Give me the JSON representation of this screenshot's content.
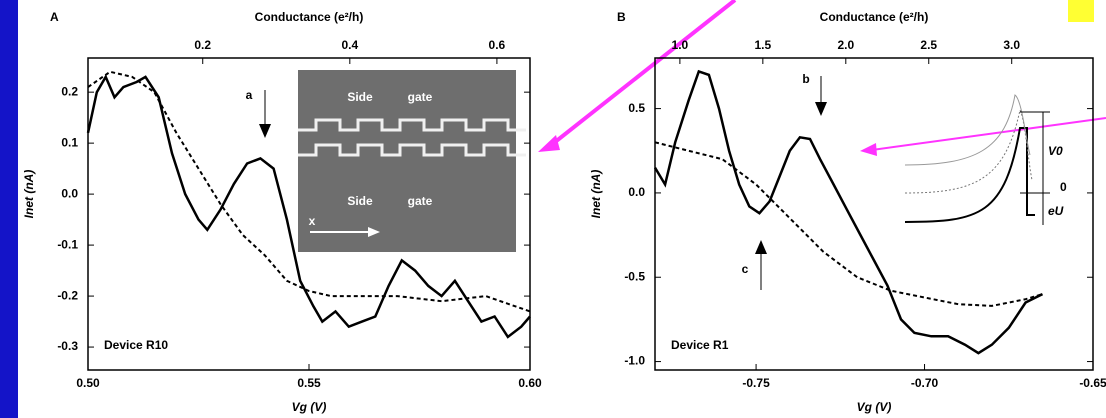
{
  "chart_data": [
    {
      "type": "line",
      "panel_label": "A",
      "top_axis_label": "Conductance (e²/h)",
      "x_label": "Vg (V)",
      "y_label": "Inet (nA)",
      "device_label": "Device R10",
      "annotations": [
        "a"
      ],
      "inset_labels": [
        "Side",
        "gate",
        "Side",
        "gate",
        "x"
      ],
      "xlim": [
        0.5,
        0.6
      ],
      "xticks": [
        {
          "value": 0.5,
          "label": "0.50"
        },
        {
          "value": 0.55,
          "label": "0.55"
        },
        {
          "value": 0.6,
          "label": "0.60"
        }
      ],
      "x2lim": [
        0.044,
        0.645
      ],
      "x2ticks": [
        0.2,
        0.4,
        0.6
      ],
      "ylim": [
        -0.345,
        0.267
      ],
      "yticks": [
        0.2,
        0.1,
        {
          "value": 0,
          "label": "0.0"
        },
        -0.1,
        -0.2,
        -0.3
      ],
      "series": [
        {
          "color": "#000000",
          "dashed": false,
          "x": [
            0.5,
            0.502,
            0.504,
            0.506,
            0.508,
            0.511,
            0.513,
            0.516,
            0.519,
            0.522,
            0.525,
            0.527,
            0.53,
            0.533,
            0.536,
            0.539,
            0.542,
            0.545,
            0.548,
            0.551,
            0.553,
            0.556,
            0.559,
            0.562,
            0.565,
            0.568,
            0.571,
            0.574,
            0.577,
            0.58,
            0.583,
            0.586,
            0.589,
            0.592,
            0.595,
            0.598,
            0.6
          ],
          "values": [
            0.12,
            0.2,
            0.23,
            0.19,
            0.21,
            0.22,
            0.23,
            0.19,
            0.08,
            0.0,
            -0.05,
            -0.07,
            -0.03,
            0.02,
            0.06,
            0.07,
            0.05,
            -0.05,
            -0.17,
            -0.22,
            -0.25,
            -0.23,
            -0.26,
            -0.25,
            -0.24,
            -0.18,
            -0.13,
            -0.15,
            -0.18,
            -0.2,
            -0.17,
            -0.21,
            -0.25,
            -0.24,
            -0.28,
            -0.26,
            -0.24
          ]
        },
        {
          "color": "#000000",
          "dashed": true,
          "x": [
            0.5,
            0.505,
            0.51,
            0.515,
            0.52,
            0.525,
            0.53,
            0.535,
            0.54,
            0.545,
            0.55,
            0.555,
            0.56,
            0.57,
            0.58,
            0.59,
            0.6
          ],
          "values": [
            0.21,
            0.24,
            0.23,
            0.2,
            0.12,
            0.05,
            -0.02,
            -0.08,
            -0.12,
            -0.17,
            -0.19,
            -0.2,
            -0.2,
            -0.2,
            -0.21,
            -0.2,
            -0.23
          ]
        }
      ]
    },
    {
      "type": "line",
      "panel_label": "B",
      "top_axis_label": "Conductance (e²/h)",
      "x_label": "Vg (V)",
      "y_label": "Inet (nA)",
      "device_label": "Device R1",
      "annotations": [
        "b",
        "c",
        "V0",
        "0",
        "eU"
      ],
      "xlim": [
        -0.78,
        -0.65
      ],
      "xticks": [
        -0.75,
        {
          "value": -0.7,
          "label": "-0.70"
        },
        -0.65
      ],
      "x2lim": [
        0.85,
        3.49
      ],
      "x2ticks": [
        {
          "value": 1,
          "label": "1.0"
        },
        1.5,
        {
          "value": 2,
          "label": "2.0"
        },
        2.5,
        {
          "value": 3,
          "label": "3.0"
        }
      ],
      "ylim": [
        -1.05,
        0.8
      ],
      "yticks": [
        0.5,
        {
          "value": 0,
          "label": "0.0"
        },
        -0.5,
        {
          "value": -1,
          "label": "-1.0"
        }
      ],
      "series": [
        {
          "color": "#000000",
          "dashed": false,
          "x": [
            -0.78,
            -0.777,
            -0.774,
            -0.77,
            -0.767,
            -0.764,
            -0.761,
            -0.758,
            -0.755,
            -0.752,
            -0.749,
            -0.746,
            -0.743,
            -0.74,
            -0.737,
            -0.734,
            -0.731,
            -0.727,
            -0.723,
            -0.719,
            -0.715,
            -0.711,
            -0.707,
            -0.703,
            -0.698,
            -0.693,
            -0.688,
            -0.684,
            -0.68,
            -0.675,
            -0.67,
            -0.665
          ],
          "values": [
            0.15,
            0.05,
            0.3,
            0.55,
            0.72,
            0.7,
            0.5,
            0.25,
            0.05,
            -0.08,
            -0.12,
            -0.05,
            0.1,
            0.25,
            0.33,
            0.32,
            0.2,
            0.05,
            -0.1,
            -0.25,
            -0.4,
            -0.55,
            -0.75,
            -0.83,
            -0.85,
            -0.85,
            -0.9,
            -0.95,
            -0.9,
            -0.8,
            -0.65,
            -0.6
          ]
        },
        {
          "color": "#000000",
          "dashed": true,
          "x": [
            -0.78,
            -0.77,
            -0.76,
            -0.75,
            -0.74,
            -0.73,
            -0.72,
            -0.71,
            -0.7,
            -0.69,
            -0.68,
            -0.67,
            -0.665
          ],
          "values": [
            0.3,
            0.25,
            0.2,
            0.05,
            -0.15,
            -0.35,
            -0.5,
            -0.58,
            -0.62,
            -0.66,
            -0.67,
            -0.63,
            -0.6
          ]
        }
      ]
    }
  ]
}
